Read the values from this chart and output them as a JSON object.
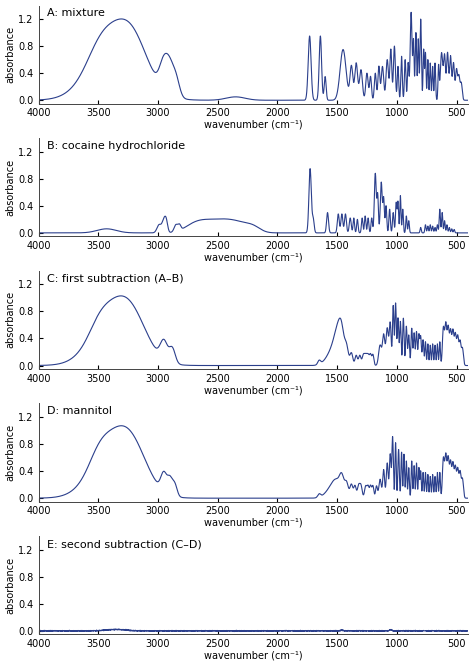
{
  "title_A": "A: mixture",
  "title_B": "B: cocaine hydrochloride",
  "title_C": "C: first subtraction (A–B)",
  "title_D": "D: mannitol",
  "title_E": "E: second subtraction (C–D)",
  "xlabel": "wavenumber (cm⁻¹)",
  "ylabel": "absorbance",
  "xlim": [
    4000,
    400
  ],
  "ylim": [
    -0.05,
    1.4
  ],
  "yticks": [
    0.0,
    0.4,
    0.8,
    1.2
  ],
  "xticks": [
    4000,
    3500,
    3000,
    2500,
    2000,
    1500,
    1000,
    500
  ],
  "line_color": "#2b3f8c",
  "line_width": 0.8,
  "bg_color": "#ffffff",
  "fig_width": 4.74,
  "fig_height": 6.66,
  "dpi": 100
}
